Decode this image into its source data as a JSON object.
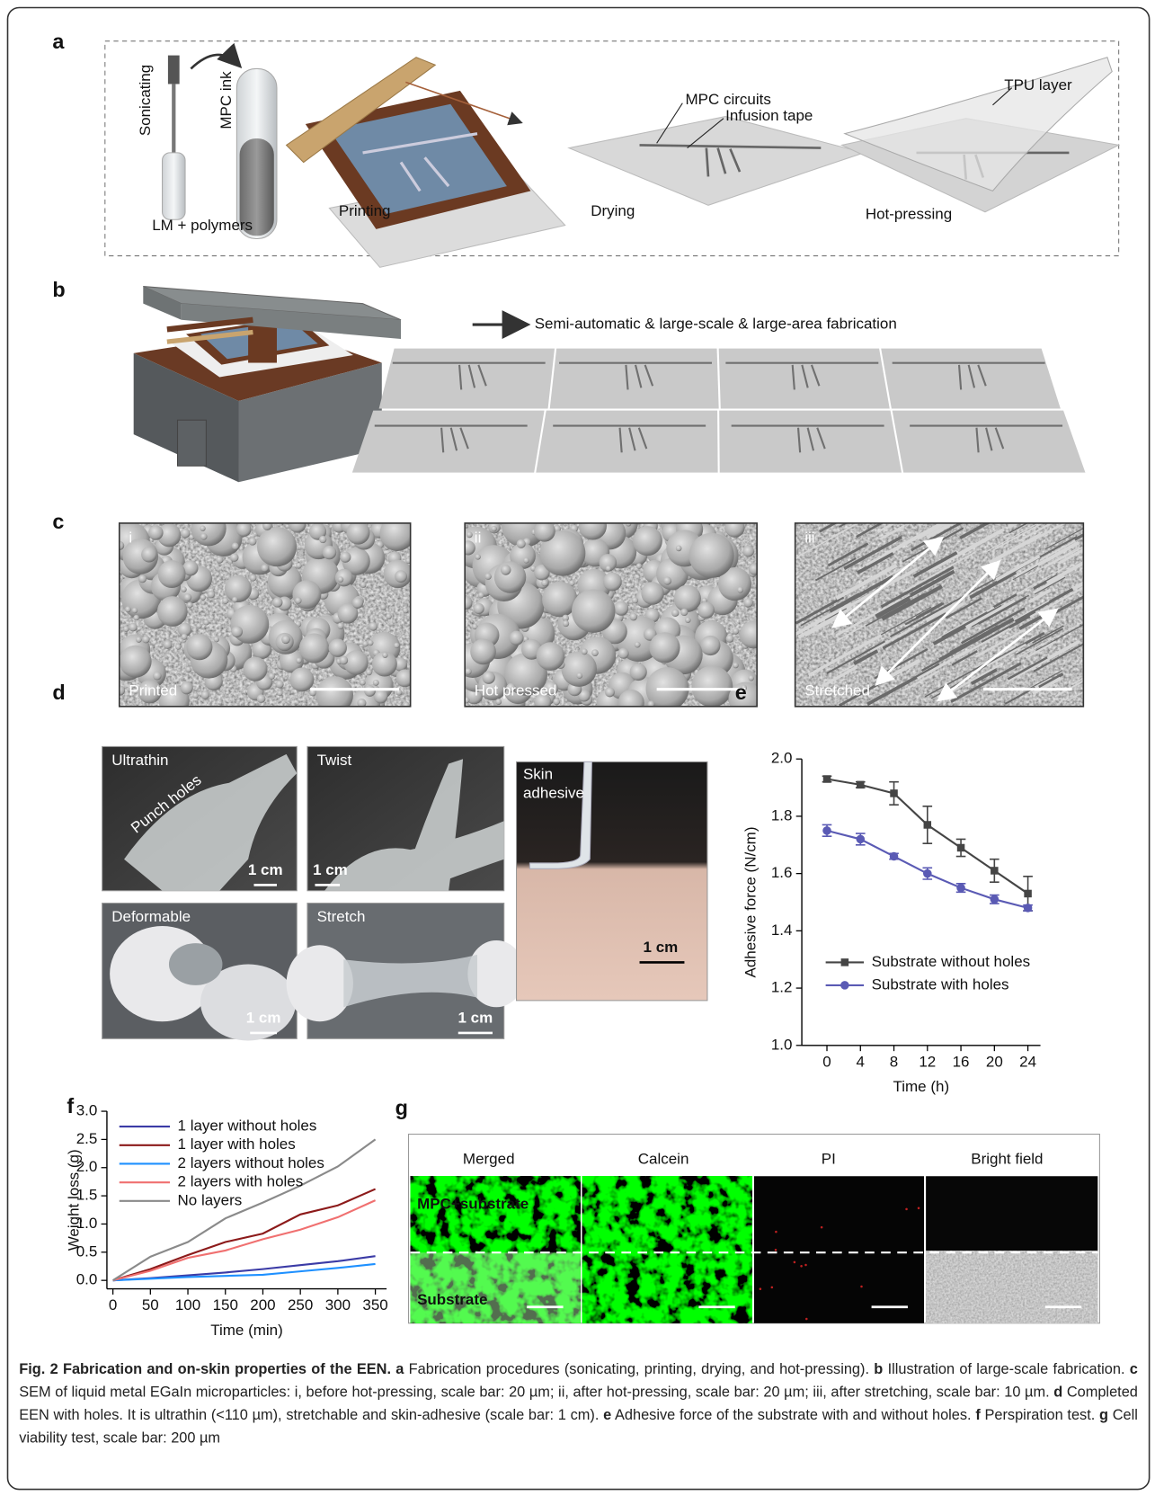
{
  "figure": {
    "a": {
      "label": "a",
      "sonicating": "Sonicating",
      "mpc_ink": "MPC ink",
      "lm_polymers": "LM + polymers",
      "printing": "Printing",
      "drying": "Drying",
      "mpc_circuits": "MPC circuits",
      "infusion_tape": "Infusion tape",
      "tpu_layer": "TPU layer",
      "hot_pressing": "Hot-pressing"
    },
    "b": {
      "label": "b",
      "arrow_text": "Semi-automatic & large-scale & large-area  fabrication"
    },
    "c": {
      "label": "c",
      "images": [
        {
          "index": "i",
          "caption": "Printed"
        },
        {
          "index": "ii",
          "caption": "Hot pressed"
        },
        {
          "index": "iii",
          "caption": "Stretched"
        }
      ]
    },
    "d": {
      "label": "d",
      "photos": [
        {
          "title": "Ultrathin",
          "note": "Punch holes",
          "scale": "1 cm"
        },
        {
          "title": "Twist",
          "scale": "1 cm"
        },
        {
          "title": "Deformable",
          "scale": "1 cm"
        },
        {
          "title": "Stretch",
          "scale": "1 cm"
        },
        {
          "title": "Skin adhesive",
          "scale": "1 cm"
        }
      ]
    },
    "g": {
      "label": "g",
      "columns": [
        "Merged",
        "Calcein",
        "PI",
        "Bright field"
      ],
      "regions": [
        "MPC+substrate",
        "Substrate"
      ]
    }
  },
  "chart_data": [
    {
      "type": "line",
      "panel_label": "e",
      "xlabel": "Time (h)",
      "ylabel": "Adhesive force (N/cm)",
      "x": [
        0,
        4,
        8,
        12,
        16,
        20,
        24
      ],
      "series": [
        {
          "name": "Substrate without holes",
          "color": "#454545",
          "marker": "square",
          "values": [
            1.93,
            1.91,
            1.88,
            1.77,
            1.69,
            1.61,
            1.53
          ],
          "errors": [
            0.01,
            0.01,
            0.04,
            0.065,
            0.03,
            0.04,
            0.06
          ]
        },
        {
          "name": "Substrate with holes",
          "color": "#5a5ab4",
          "marker": "circle",
          "values": [
            1.75,
            1.72,
            1.66,
            1.6,
            1.55,
            1.51,
            1.48
          ],
          "errors": [
            0.02,
            0.02,
            0.01,
            0.02,
            0.015,
            0.015,
            0.01
          ]
        }
      ],
      "xlim": [
        -3,
        25.5
      ],
      "ylim": [
        1,
        2
      ],
      "xticks": [
        0,
        4,
        8,
        12,
        16,
        20,
        24
      ],
      "yticks": [
        {
          "value": 1,
          "label": "1.0"
        },
        1.2,
        1.4,
        1.6,
        1.8,
        {
          "value": 2,
          "label": "2.0"
        }
      ],
      "grid": false,
      "legend_position": "lower left"
    },
    {
      "type": "line",
      "panel_label": "f",
      "xlabel": "Time (min)",
      "ylabel": "Weight loss (g)",
      "x": [
        0,
        50,
        100,
        150,
        200,
        250,
        300,
        350
      ],
      "series": [
        {
          "name": "1 layer without holes",
          "color": "#3b3ba6",
          "values": [
            0,
            0.04,
            0.09,
            0.14,
            0.2,
            0.27,
            0.34,
            0.43
          ]
        },
        {
          "name": "1 layer with holes",
          "color": "#8c1a1a",
          "values": [
            0,
            0.2,
            0.45,
            0.68,
            0.83,
            1.17,
            1.33,
            1.62
          ]
        },
        {
          "name": "2 layers without holes",
          "color": "#1e90ff",
          "values": [
            0,
            0.03,
            0.06,
            0.08,
            0.1,
            0.16,
            0.22,
            0.29
          ]
        },
        {
          "name": "2 layers with holes",
          "color": "#f07070",
          "values": [
            0,
            0.17,
            0.4,
            0.53,
            0.73,
            0.9,
            1.12,
            1.42
          ]
        },
        {
          "name": "No layers",
          "color": "#8a8a8a",
          "values": [
            0,
            0.42,
            0.68,
            1.1,
            1.38,
            1.68,
            2.02,
            2.5
          ]
        }
      ],
      "xlim": [
        -8,
        365
      ],
      "ylim": [
        -0.15,
        3
      ],
      "xticks": [
        0,
        50,
        100,
        150,
        200,
        250,
        300,
        350
      ],
      "yticks": [
        {
          "value": 0,
          "label": "0.0"
        },
        0.5,
        {
          "value": 1,
          "label": "1.0"
        },
        1.5,
        {
          "value": 2,
          "label": "2.0"
        },
        2.5,
        {
          "value": 3,
          "label": "3.0"
        }
      ],
      "grid": false,
      "legend_position": "upper left"
    }
  ],
  "caption": {
    "title": "Fig. 2 Fabrication and on-skin properties of the EEN.",
    "items": [
      {
        "label": "a",
        "text": "Fabrication procedures (sonicating, printing, drying, and hot-pressing)."
      },
      {
        "label": "b",
        "text": "Illustration of large-scale fabrication."
      },
      {
        "label": "c",
        "text": "SEM of liquid metal EGaIn microparticles: i, before hot-pressing, scale bar: 20 µm; ii, after hot-pressing, scale bar: 20 µm; iii, after stretching, scale bar: 10 µm."
      },
      {
        "label": "d",
        "text": "Completed EEN with holes. It is ultrathin (<110 µm), stretchable and skin-adhesive (scale bar: 1 cm)."
      },
      {
        "label": "e",
        "text": "Adhesive force of the substrate with and without holes."
      },
      {
        "label": "f",
        "text": "Perspiration test."
      },
      {
        "label": "g",
        "text": "Cell viability test, scale bar: 200 µm"
      }
    ]
  }
}
